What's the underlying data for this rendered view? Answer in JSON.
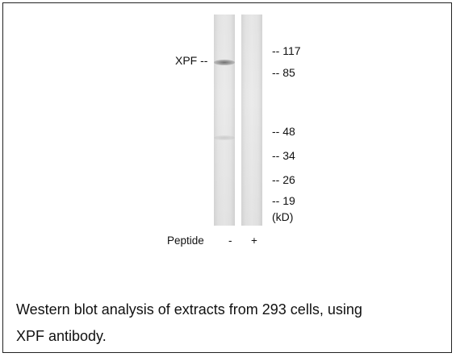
{
  "blot": {
    "band_label": "XPF --",
    "markers": [
      {
        "label": "-- 117"
      },
      {
        "label": "-- 85"
      },
      {
        "label": "-- 48"
      },
      {
        "label": "-- 34"
      },
      {
        "label": "-- 26"
      },
      {
        "label": "-- 19"
      },
      {
        "label": "(kD)"
      }
    ],
    "lanes": [
      {
        "peptide": "-"
      },
      {
        "peptide": "+"
      }
    ],
    "peptide_label": "Peptide"
  },
  "caption": {
    "line1": "Western blot analysis of extracts from 293 cells, using",
    "line2": "XPF antibody."
  }
}
